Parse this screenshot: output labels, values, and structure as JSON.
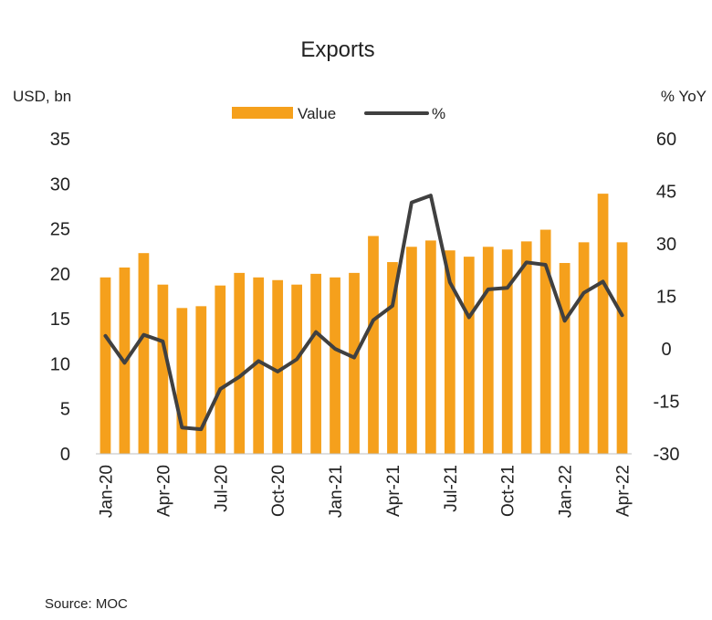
{
  "chart_data": {
    "type": "bar+line",
    "title": "Exports",
    "ylabel_left": "USD, bn",
    "ylabel_right": "% YoY",
    "ylim_left": [
      0,
      35
    ],
    "ylim_right": [
      -30,
      60
    ],
    "yticks_left": [
      "0",
      "5",
      "10",
      "15",
      "20",
      "25",
      "30",
      "35"
    ],
    "yticks_right": [
      "-30",
      "-15",
      "0",
      "15",
      "30",
      "45",
      "60"
    ],
    "xtick_labels": [
      "Jan-20",
      "Apr-20",
      "Jul-20",
      "Oct-20",
      "Jan-21",
      "Apr-21",
      "Jul-21",
      "Oct-21",
      "Jan-22",
      "Apr-22"
    ],
    "categories": [
      "Jan-20",
      "Feb-20",
      "Mar-20",
      "Apr-20",
      "May-20",
      "Jun-20",
      "Jul-20",
      "Aug-20",
      "Sep-20",
      "Oct-20",
      "Nov-20",
      "Dec-20",
      "Jan-21",
      "Feb-21",
      "Mar-21",
      "Apr-21",
      "May-21",
      "Jun-21",
      "Jul-21",
      "Aug-21",
      "Sep-21",
      "Oct-21",
      "Nov-21",
      "Dec-21",
      "Jan-22",
      "Feb-22",
      "Mar-22",
      "Apr-22"
    ],
    "series": [
      {
        "name": "Value",
        "type": "bar",
        "axis": "left",
        "color": "#F5A01C",
        "values": [
          19.6,
          20.7,
          22.3,
          18.8,
          16.2,
          16.4,
          18.7,
          20.1,
          19.6,
          19.3,
          18.8,
          20.0,
          19.6,
          20.1,
          24.2,
          21.3,
          23.0,
          23.7,
          22.6,
          21.9,
          23.0,
          22.7,
          23.6,
          24.9,
          21.2,
          23.5,
          28.9,
          23.5
        ]
      },
      {
        "name": "%",
        "type": "line",
        "axis": "right",
        "color": "#404040",
        "values": [
          3.7,
          -4.0,
          4.0,
          2.1,
          -22.5,
          -23.0,
          -11.5,
          -8.0,
          -3.5,
          -6.5,
          -3.0,
          4.8,
          0.0,
          -2.5,
          8.2,
          12.3,
          41.8,
          43.8,
          19.0,
          9.0,
          17.0,
          17.4,
          24.7,
          24.0,
          8.0,
          16.0,
          19.2,
          9.6
        ]
      }
    ],
    "legend": [
      {
        "label": "Value",
        "kind": "bar"
      },
      {
        "label": "%",
        "kind": "line"
      }
    ],
    "legend_position": "top-center",
    "source": "Source:  MOC",
    "grid": false
  }
}
